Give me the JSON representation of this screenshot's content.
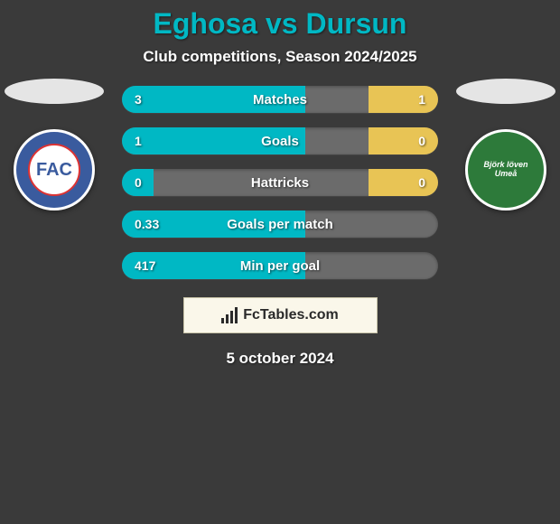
{
  "title": "Eghosa vs Dursun",
  "subtitle": "Club competitions, Season 2024/2025",
  "date": "5 october 2024",
  "branding_text": "FcTables.com",
  "colors": {
    "accent_left": "#00b8c4",
    "accent_right": "#e8c455",
    "bar_bg": "#6b6b6b",
    "page_bg": "#3a3a3a",
    "text": "#ffffff"
  },
  "club_left": {
    "abbr": "FAC",
    "bg": "#3a5b9e"
  },
  "club_right": {
    "text": "Björk löven Umeå",
    "bg": "#2d7a3a"
  },
  "stats": [
    {
      "label": "Matches",
      "left_val": "3",
      "right_val": "1",
      "left_pct": 58,
      "right_pct": 22
    },
    {
      "label": "Goals",
      "left_val": "1",
      "right_val": "0",
      "left_pct": 58,
      "right_pct": 22
    },
    {
      "label": "Hattricks",
      "left_val": "0",
      "right_val": "0",
      "left_pct": 10,
      "right_pct": 22
    },
    {
      "label": "Goals per match",
      "left_val": "0.33",
      "right_val": "",
      "left_pct": 58,
      "right_pct": 0
    },
    {
      "label": "Min per goal",
      "left_val": "417",
      "right_val": "",
      "left_pct": 58,
      "right_pct": 0
    }
  ]
}
